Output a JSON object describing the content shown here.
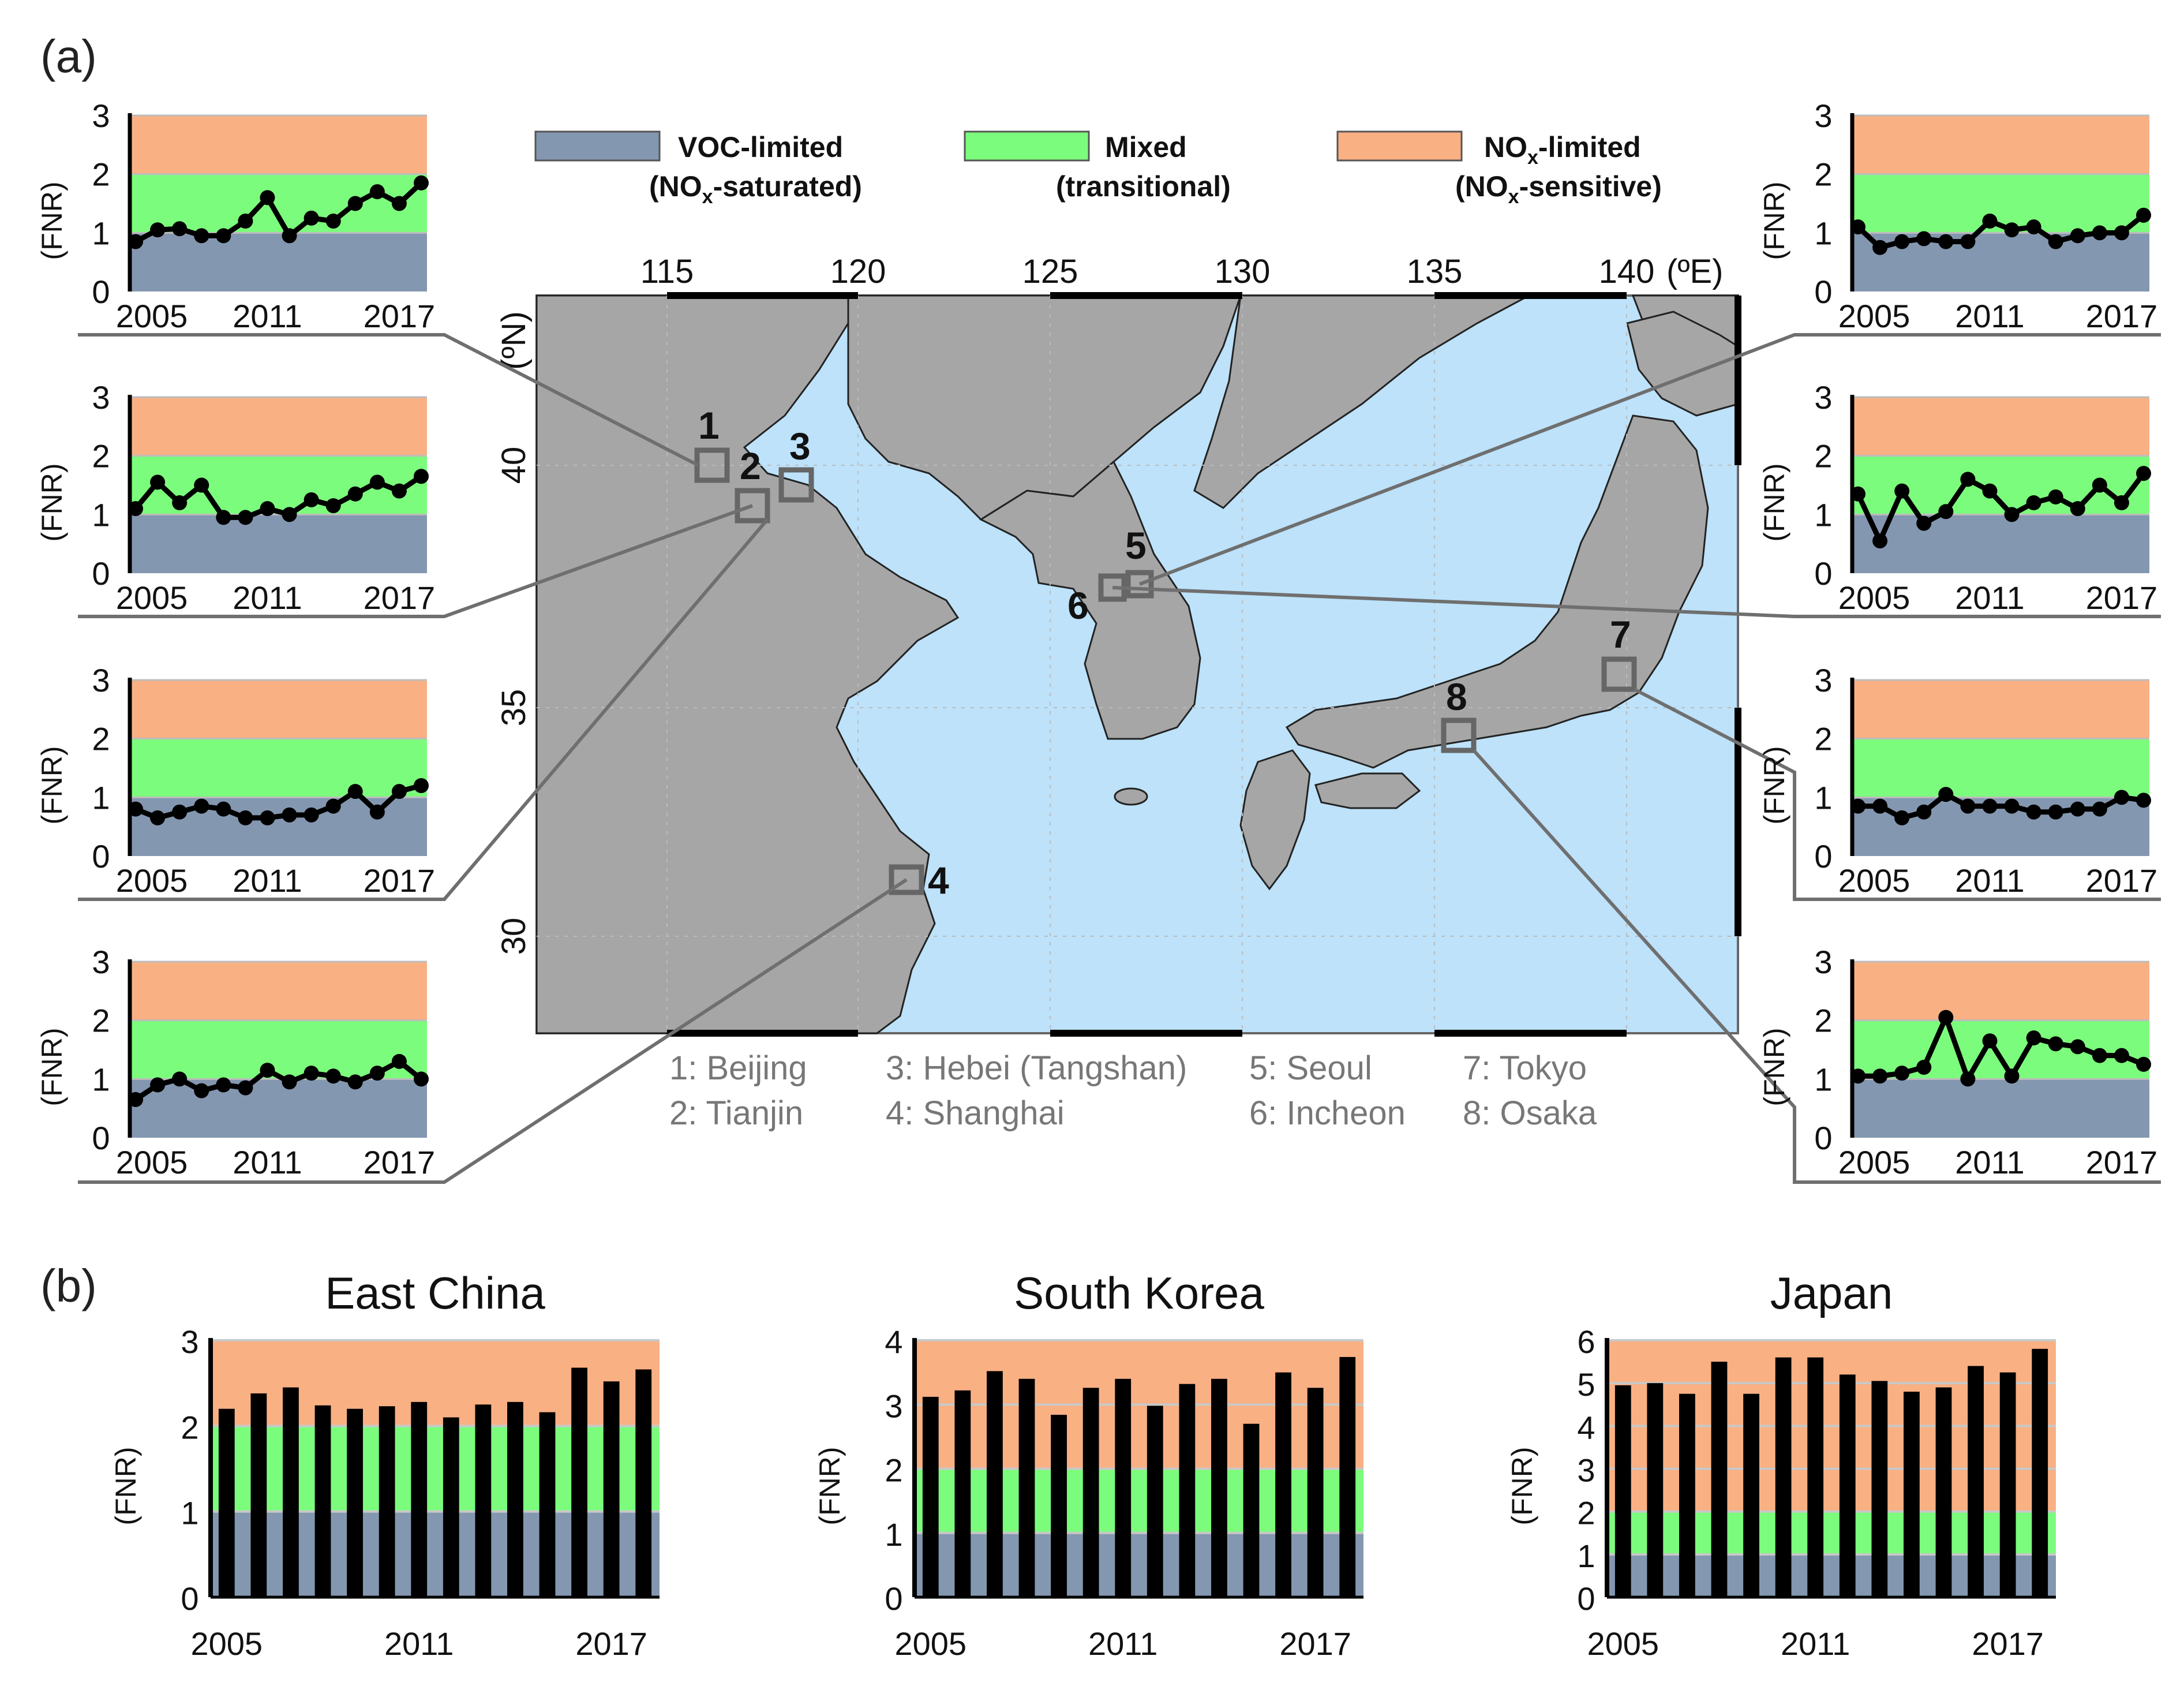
{
  "labels": {
    "panel_a": "(a)",
    "panel_b": "(b)"
  },
  "colors": {
    "voc": "#8497B0",
    "mixed": "#7CFC7C",
    "nox": "#F9B083",
    "land": "#A6A6A6",
    "sea": "#BDE2FA",
    "bar": "#000000",
    "series": "#000000",
    "connector": "#7F7F7F"
  },
  "legend": [
    {
      "line1": "VOC-limited",
      "line2": "(NOx-saturated)"
    },
    {
      "line1": "Mixed",
      "line2": "(transitional)"
    },
    {
      "line1": "NOx-limited",
      "line2": "(NOx-sensitive)"
    }
  ],
  "map": {
    "lon_ticks": [
      "115",
      "120",
      "125",
      "130",
      "135",
      "140"
    ],
    "lon_unit": "(ºE)",
    "lat_ticks": [
      "40",
      "35",
      "30"
    ],
    "lat_unit": "(ºN)",
    "site_numbers": [
      "1",
      "2",
      "3",
      "4",
      "5",
      "6",
      "7",
      "8"
    ],
    "cities": [
      "1: Beijing",
      "2: Tianjin",
      "3: Hebei (Tangshan)",
      "4: Shanghai",
      "5: Seoul",
      "6: Incheon",
      "7: Tokyo",
      "8: Osaka"
    ]
  },
  "chart_data": [
    {
      "type": "line",
      "site": "1: Beijing",
      "ylabel": "(FNR)",
      "ylim": [
        0,
        3
      ],
      "x_ticks": [
        "2005",
        "2011",
        "2017"
      ],
      "x": [
        2005,
        2006,
        2007,
        2008,
        2009,
        2010,
        2011,
        2012,
        2013,
        2014,
        2015,
        2016,
        2017,
        2018
      ],
      "values": [
        0.85,
        1.05,
        1.07,
        0.95,
        0.95,
        1.2,
        1.6,
        0.95,
        1.25,
        1.2,
        1.5,
        1.7,
        1.5,
        1.85
      ]
    },
    {
      "type": "line",
      "site": "2: Tianjin",
      "ylabel": "(FNR)",
      "ylim": [
        0,
        3
      ],
      "x_ticks": [
        "2005",
        "2011",
        "2017"
      ],
      "x": [
        2005,
        2006,
        2007,
        2008,
        2009,
        2010,
        2011,
        2012,
        2013,
        2014,
        2015,
        2016,
        2017,
        2018
      ],
      "values": [
        1.1,
        1.55,
        1.2,
        1.5,
        0.95,
        0.95,
        1.1,
        1.0,
        1.25,
        1.15,
        1.35,
        1.55,
        1.4,
        1.65
      ]
    },
    {
      "type": "line",
      "site": "3: Hebei (Tangshan)",
      "ylabel": "(FNR)",
      "ylim": [
        0,
        3
      ],
      "x_ticks": [
        "2005",
        "2011",
        "2017"
      ],
      "x": [
        2005,
        2006,
        2007,
        2008,
        2009,
        2010,
        2011,
        2012,
        2013,
        2014,
        2015,
        2016,
        2017,
        2018
      ],
      "values": [
        0.8,
        0.65,
        0.75,
        0.85,
        0.8,
        0.65,
        0.65,
        0.7,
        0.7,
        0.85,
        1.1,
        0.75,
        1.1,
        1.2
      ]
    },
    {
      "type": "line",
      "site": "4: Shanghai",
      "ylabel": "(FNR)",
      "ylim": [
        0,
        3
      ],
      "x_ticks": [
        "2005",
        "2011",
        "2017"
      ],
      "x": [
        2005,
        2006,
        2007,
        2008,
        2009,
        2010,
        2011,
        2012,
        2013,
        2014,
        2015,
        2016,
        2017,
        2018
      ],
      "values": [
        0.65,
        0.9,
        1.0,
        0.8,
        0.9,
        0.85,
        1.15,
        0.95,
        1.1,
        1.05,
        0.95,
        1.1,
        1.3,
        1.0
      ]
    },
    {
      "type": "line",
      "site": "5: Seoul",
      "ylabel": "(FNR)",
      "ylim": [
        0,
        3
      ],
      "x_ticks": [
        "2005",
        "2011",
        "2017"
      ],
      "x": [
        2005,
        2006,
        2007,
        2008,
        2009,
        2010,
        2011,
        2012,
        2013,
        2014,
        2015,
        2016,
        2017,
        2018
      ],
      "values": [
        1.1,
        0.75,
        0.85,
        0.9,
        0.85,
        0.85,
        1.2,
        1.05,
        1.1,
        0.85,
        0.95,
        1.0,
        1.0,
        1.3
      ]
    },
    {
      "type": "line",
      "site": "6: Incheon",
      "ylabel": "(FNR)",
      "ylim": [
        0,
        3
      ],
      "x_ticks": [
        "2005",
        "2011",
        "2017"
      ],
      "x": [
        2005,
        2006,
        2007,
        2008,
        2009,
        2010,
        2011,
        2012,
        2013,
        2014,
        2015,
        2016,
        2017,
        2018
      ],
      "values": [
        1.35,
        0.55,
        1.4,
        0.85,
        1.05,
        1.6,
        1.4,
        1.0,
        1.2,
        1.3,
        1.1,
        1.5,
        1.2,
        1.7
      ]
    },
    {
      "type": "line",
      "site": "7: Tokyo",
      "ylabel": "(FNR)",
      "ylim": [
        0,
        3
      ],
      "x_ticks": [
        "2005",
        "2011",
        "2017"
      ],
      "x": [
        2005,
        2006,
        2007,
        2008,
        2009,
        2010,
        2011,
        2012,
        2013,
        2014,
        2015,
        2016,
        2017,
        2018
      ],
      "values": [
        0.85,
        0.85,
        0.65,
        0.75,
        1.05,
        0.85,
        0.85,
        0.85,
        0.75,
        0.75,
        0.8,
        0.8,
        1.0,
        0.95
      ]
    },
    {
      "type": "line",
      "site": "8: Osaka",
      "ylabel": "(FNR)",
      "ylim": [
        0,
        3
      ],
      "x_ticks": [
        "2005",
        "2011",
        "2017"
      ],
      "x": [
        2005,
        2006,
        2007,
        2008,
        2009,
        2010,
        2011,
        2012,
        2013,
        2014,
        2015,
        2016,
        2017,
        2018
      ],
      "values": [
        1.05,
        1.05,
        1.1,
        1.2,
        2.05,
        1.0,
        1.65,
        1.05,
        1.7,
        1.6,
        1.55,
        1.4,
        1.4,
        1.25
      ]
    },
    {
      "type": "bar",
      "title": "East China",
      "ylabel": "(FNR)",
      "ylim": [
        0,
        3
      ],
      "y_ticks": [
        "3",
        "2",
        "1",
        "0"
      ],
      "x_ticks": [
        "2005",
        "2011",
        "2017"
      ],
      "categories": [
        2005,
        2006,
        2007,
        2008,
        2009,
        2010,
        2011,
        2012,
        2013,
        2014,
        2015,
        2016,
        2017,
        2018
      ],
      "values": [
        2.2,
        2.38,
        2.45,
        2.24,
        2.2,
        2.23,
        2.28,
        2.1,
        2.25,
        2.28,
        2.16,
        2.68,
        2.52,
        2.66
      ]
    },
    {
      "type": "bar",
      "title": "South Korea",
      "ylabel": "(FNR)",
      "ylim": [
        0,
        4
      ],
      "y_ticks": [
        "4",
        "3",
        "2",
        "1",
        "0"
      ],
      "x_ticks": [
        "2005",
        "2011",
        "2017"
      ],
      "categories": [
        2005,
        2006,
        2007,
        2008,
        2009,
        2010,
        2011,
        2012,
        2013,
        2014,
        2015,
        2016,
        2017,
        2018
      ],
      "values": [
        3.12,
        3.22,
        3.52,
        3.4,
        2.84,
        3.26,
        3.4,
        2.98,
        3.32,
        3.4,
        2.7,
        3.5,
        3.26,
        3.74
      ]
    },
    {
      "type": "bar",
      "title": "Japan",
      "ylabel": "(FNR)",
      "ylim": [
        0,
        6
      ],
      "y_ticks": [
        "6",
        "5",
        "4",
        "3",
        "2",
        "1",
        "0"
      ],
      "x_ticks": [
        "2005",
        "2011",
        "2017"
      ],
      "categories": [
        2005,
        2006,
        2007,
        2008,
        2009,
        2010,
        2011,
        2012,
        2013,
        2014,
        2015,
        2016,
        2017,
        2018
      ],
      "values": [
        4.95,
        5.0,
        4.75,
        5.5,
        4.75,
        5.6,
        5.6,
        5.2,
        5.05,
        4.8,
        4.9,
        5.4,
        5.25,
        5.8
      ]
    }
  ]
}
